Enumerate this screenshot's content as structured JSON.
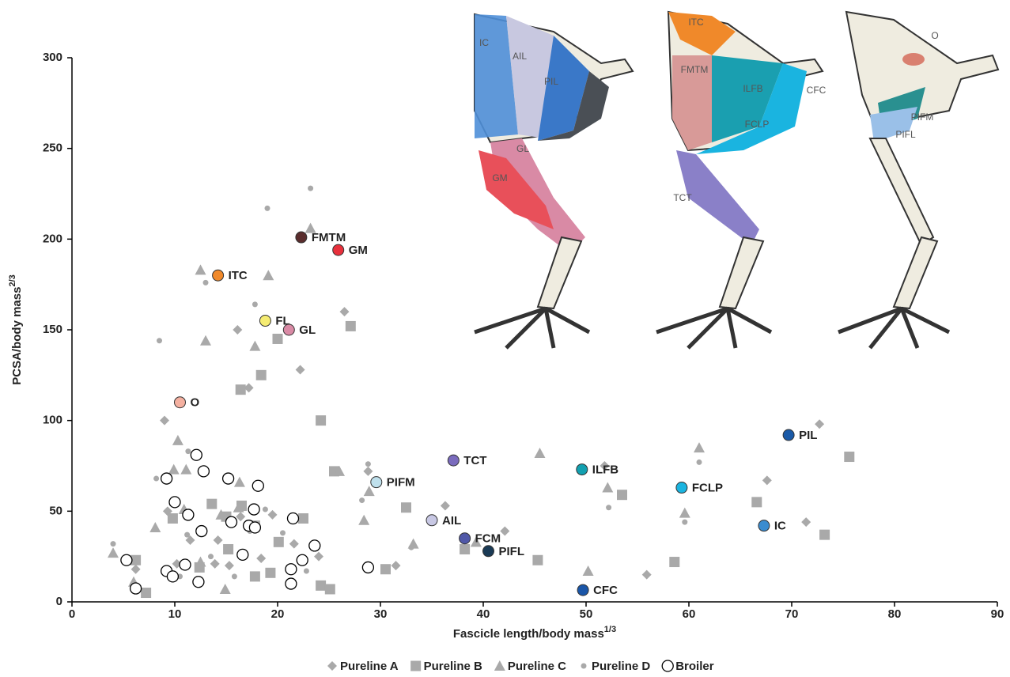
{
  "chart_data": {
    "type": "scatter",
    "x_label": "Fascicle length/body mass",
    "x_label_sup": "1/3",
    "y_label": "PCSA/body mass",
    "y_label_sup": "2/3",
    "xlim": [
      0,
      90
    ],
    "xticks": [
      0,
      10,
      20,
      30,
      40,
      50,
      60,
      70,
      80,
      90
    ],
    "ylim": [
      0,
      300
    ],
    "yticks": [
      0,
      50,
      100,
      150,
      200,
      250,
      300
    ],
    "series": [
      {
        "name": "Pureline A",
        "marker": "diamond",
        "color": "#a9a9a9",
        "x": [
          9,
          16.1,
          22.2,
          26.5,
          17.2,
          72.7,
          67.6,
          51.8,
          36.3,
          42.1,
          31.5,
          55.9,
          71.4,
          28.8,
          9.3,
          10.2,
          11.5,
          13.9,
          15.3,
          18.4,
          19.5,
          21.6,
          24,
          6.2,
          14.2,
          16.4
        ],
        "y": [
          100,
          150,
          128,
          160,
          118,
          98,
          67,
          75,
          53,
          39,
          20,
          15,
          44,
          72,
          50,
          21,
          34,
          21,
          20,
          24,
          48,
          32,
          25,
          18,
          34,
          47
        ]
      },
      {
        "name": "Pureline B",
        "marker": "square",
        "color": "#a9a9a9",
        "x": [
          27.1,
          20,
          18.4,
          16.4,
          24.2,
          25.5,
          32.5,
          30.5,
          38.2,
          45.3,
          53.5,
          75.6,
          66.6,
          73.2,
          58.6,
          7.2,
          6.2,
          9.8,
          13.6,
          15,
          16.5,
          17.8,
          20.1,
          22.5,
          24.2,
          25.1,
          19.3,
          17.8,
          15.2,
          12.4
        ],
        "y": [
          152,
          145,
          125,
          117,
          100,
          72,
          52,
          18,
          29,
          23,
          59,
          80,
          55,
          37,
          22,
          5,
          23,
          46,
          54,
          47,
          53,
          42,
          33,
          46,
          9,
          7,
          16,
          14,
          29,
          19
        ]
      },
      {
        "name": "Pureline C",
        "marker": "triangle",
        "color": "#a9a9a9",
        "x": [
          12.5,
          19.1,
          13,
          17.8,
          23.2,
          10.3,
          26,
          28.9,
          28.4,
          33.2,
          39.3,
          45.5,
          52.1,
          61,
          59.6,
          50.2,
          4,
          6,
          8.1,
          10.9,
          9.9,
          16.2,
          14.9,
          12.5,
          11.1,
          14.5,
          16.3
        ],
        "y": [
          183,
          180,
          144,
          141,
          206,
          89,
          72,
          61,
          45,
          32,
          33,
          82,
          63,
          85,
          49,
          17,
          27,
          11,
          41,
          51,
          73,
          52,
          7,
          22,
          73,
          48,
          66
        ]
      },
      {
        "name": "Pureline D",
        "marker": "dot",
        "color": "#a9a9a9",
        "x": [
          23.2,
          19,
          8.5,
          17.8,
          13,
          28.8,
          28.2,
          61,
          59.6,
          52.2,
          10.5,
          4,
          9.7,
          11.2,
          13.5,
          15.8,
          17.3,
          18.8,
          20.5,
          22.8,
          8.2,
          11.3,
          33,
          49.9
        ],
        "y": [
          228,
          217,
          144,
          164,
          176,
          76,
          56,
          77,
          44,
          52,
          14,
          32,
          54,
          37,
          25,
          14,
          39,
          51,
          38,
          17,
          68,
          83,
          30,
          7
        ]
      },
      {
        "name": "Broiler",
        "marker": "open",
        "color": "#000000",
        "x": [
          5.3,
          6.2,
          9.2,
          12.1,
          12.8,
          10,
          11.3,
          12.6,
          15.2,
          15.5,
          18.1,
          17.7,
          17.2,
          17.8,
          21.5,
          16.6,
          23.6,
          22.4,
          21.3,
          21.3,
          28.8,
          11,
          9.2,
          9.8,
          12.3
        ],
        "y": [
          23,
          7.4,
          68,
          81,
          72,
          55,
          48,
          39,
          68,
          44,
          64,
          51,
          42,
          41,
          46,
          26,
          31,
          23,
          18,
          10,
          19,
          20.5,
          17,
          14,
          11
        ]
      }
    ],
    "highlights": [
      {
        "label": "FMTM",
        "x": 22.3,
        "y": 201,
        "color": "#5a2d2d"
      },
      {
        "label": "GM",
        "x": 25.9,
        "y": 194,
        "color": "#e8303c"
      },
      {
        "label": "ITC",
        "x": 14.2,
        "y": 180,
        "color": "#f0892a"
      },
      {
        "label": "FL",
        "x": 18.8,
        "y": 155,
        "color": "#f5ec72"
      },
      {
        "label": "GL",
        "x": 21.1,
        "y": 150,
        "color": "#d98aa5"
      },
      {
        "label": "O",
        "x": 10.5,
        "y": 110,
        "color": "#f4b0a0"
      },
      {
        "label": "TCT",
        "x": 37.1,
        "y": 78,
        "color": "#7a6bbd"
      },
      {
        "label": "PIFM",
        "x": 29.6,
        "y": 66,
        "color": "#bfe0ec"
      },
      {
        "label": "ILFB",
        "x": 49.6,
        "y": 73,
        "color": "#12a0b0"
      },
      {
        "label": "PIL",
        "x": 69.7,
        "y": 92,
        "color": "#1a5aa8"
      },
      {
        "label": "FCLP",
        "x": 59.3,
        "y": 63,
        "color": "#1ab4e0"
      },
      {
        "label": "AIL",
        "x": 35,
        "y": 45,
        "color": "#c8c8e4"
      },
      {
        "label": "IC",
        "x": 67.3,
        "y": 42,
        "color": "#3a8cd0"
      },
      {
        "label": "FCM",
        "x": 38.2,
        "y": 35,
        "color": "#5058a8"
      },
      {
        "label": "PIFL",
        "x": 40.5,
        "y": 28,
        "color": "#1a3a55"
      },
      {
        "label": "CFC",
        "x": 49.7,
        "y": 6.5,
        "color": "#1a56a8"
      }
    ],
    "illustration_labels": [
      "IC",
      "AIL",
      "PIL",
      "GL",
      "GM",
      "ITC",
      "FMTM",
      "ILFB",
      "CFC",
      "FCLP",
      "TCT",
      "O",
      "PIFM",
      "PIFL"
    ]
  }
}
